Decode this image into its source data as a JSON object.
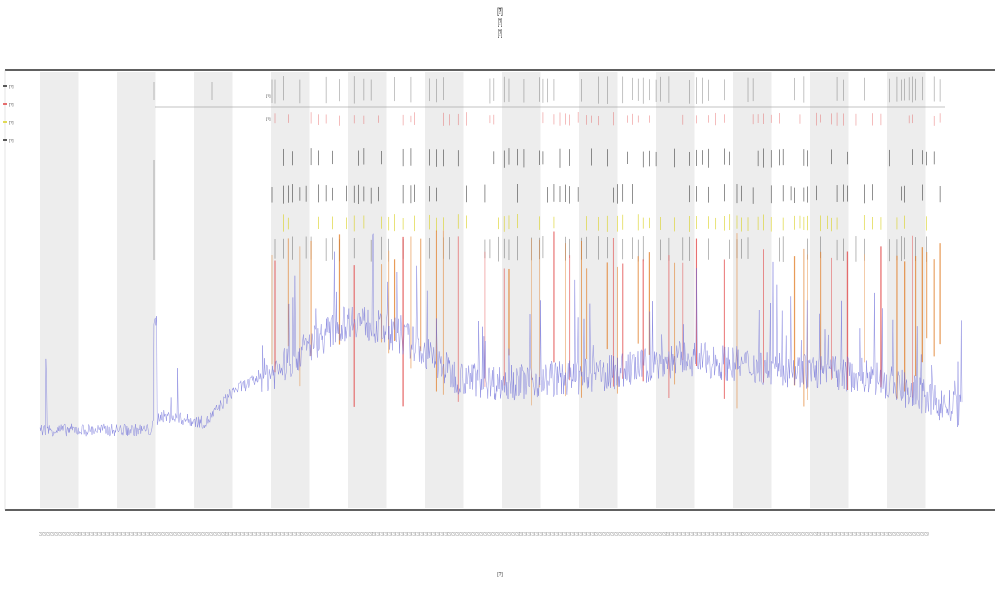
{
  "page": {
    "title_lines": [
      "[?]",
      "[?]",
      "[?]"
    ]
  },
  "chart_data": {
    "type": "line",
    "title": "",
    "xlabel": "[?]",
    "ylabel": "",
    "legend_position": "top-left",
    "grid": false,
    "alternating_column_shading": true,
    "x_tick_count": 224,
    "x_tick_label": "[?]",
    "colors": {
      "signal": "#6a6ad8",
      "event_orange": "#e07a20",
      "event_red": "#e04040",
      "event_yellow": "#d9d020",
      "event_black": "#222222",
      "band": "#ededed",
      "axis": "#000000"
    },
    "legend": [
      {
        "label": "[?]",
        "color": "#222222"
      },
      {
        "label": "[?]",
        "color": "#e04040"
      },
      {
        "label": "[?]",
        "color": "#d9d020"
      },
      {
        "label": "[?]",
        "color": "#222222"
      }
    ],
    "row_labels": [
      "[?]",
      "[?]"
    ],
    "series": [
      {
        "name": "",
        "color": "#6a6ad8",
        "baseline_profile": [
          [
            0.0,
            0.05
          ],
          [
            0.12,
            0.05
          ],
          [
            0.13,
            0.09
          ],
          [
            0.18,
            0.07
          ],
          [
            0.21,
            0.16
          ],
          [
            0.26,
            0.22
          ],
          [
            0.3,
            0.3
          ],
          [
            0.34,
            0.36
          ],
          [
            0.4,
            0.3
          ],
          [
            0.45,
            0.2
          ],
          [
            0.5,
            0.18
          ],
          [
            0.6,
            0.2
          ],
          [
            0.7,
            0.25
          ],
          [
            0.8,
            0.22
          ],
          [
            0.9,
            0.2
          ],
          [
            1.0,
            0.1
          ]
        ],
        "spike_notes": "dense jagged signal with a tall spike near position 0.125"
      }
    ]
  }
}
